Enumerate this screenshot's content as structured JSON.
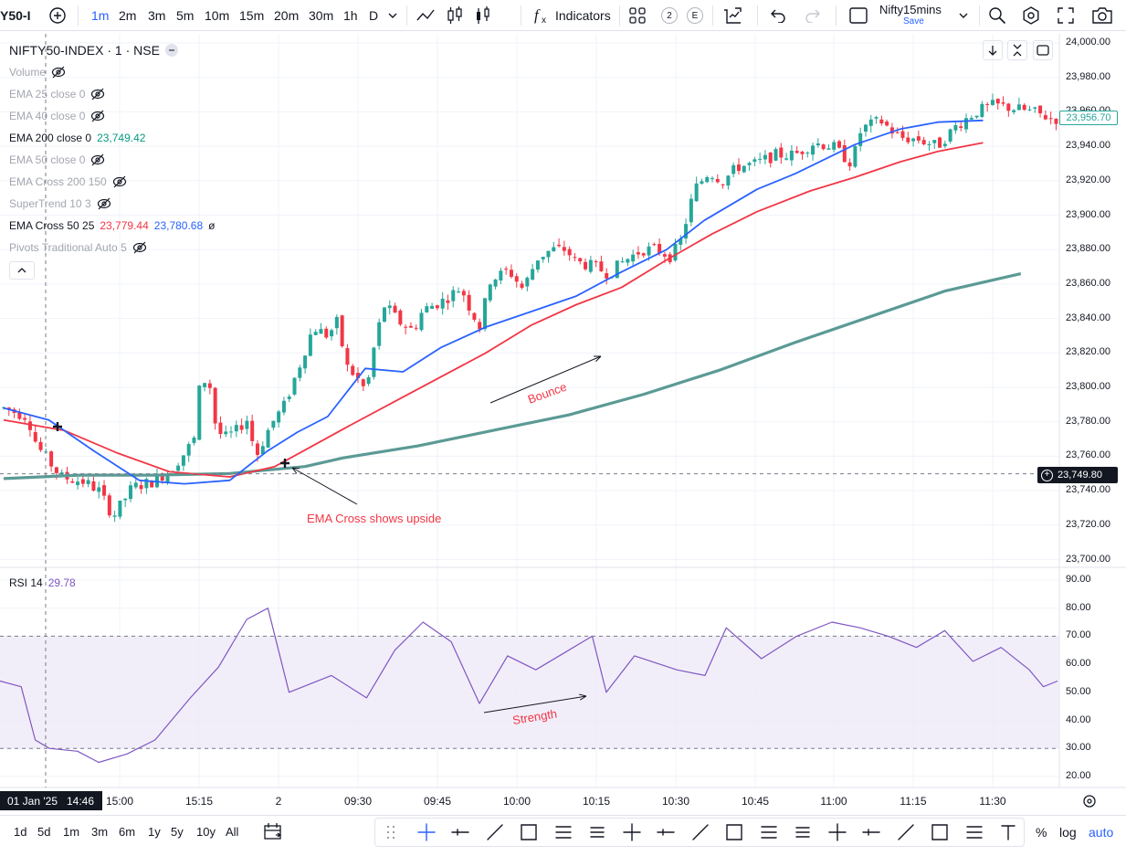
{
  "toolbar": {
    "symbol_short": "Y50-I",
    "add_symbol_icon": "plus-circle-icon",
    "intervals": [
      "1m",
      "2m",
      "3m",
      "5m",
      "10m",
      "15m",
      "20m",
      "30m",
      "1h",
      "D"
    ],
    "active_interval": "1m",
    "indicators_label": "Indicators",
    "layout_count_1": "2",
    "layout_count_2": "E",
    "layout_name": "Nifty15mins",
    "save_label": "Save"
  },
  "legend": {
    "title": "NIFTY50-INDEX · 1 · NSE",
    "indicators": [
      {
        "label": "Volume",
        "hidden": true
      },
      {
        "label": "EMA 25 close 0",
        "hidden": true
      },
      {
        "label": "EMA 40 close 0",
        "hidden": true
      },
      {
        "label": "EMA 200 close 0",
        "value": "23,749.42",
        "hidden": false
      },
      {
        "label": "EMA 50 close 0",
        "hidden": true
      },
      {
        "label": "EMA Cross 200 150",
        "hidden": true
      },
      {
        "label": "SuperTrend 10 3",
        "hidden": true
      },
      {
        "label": "EMA Cross 50 25",
        "value1": "23,779.44",
        "value2": "23,780.68",
        "suffix": "ø",
        "hidden": false
      },
      {
        "label": "Pivots Traditional Auto 5",
        "hidden": true
      }
    ],
    "rsi_label": "RSI 14",
    "rsi_value": "29.78"
  },
  "price_axis": {
    "ticks": [
      "24,000.00",
      "23,980.00",
      "23,960.00",
      "23,940.00",
      "23,920.00",
      "23,900.00",
      "23,880.00",
      "23,860.00",
      "23,840.00",
      "23,820.00",
      "23,800.00",
      "23,780.00",
      "23,760.00",
      "23,740.00",
      "23,720.00",
      "23,700.00"
    ],
    "last_price": "23,956.70",
    "crosshair_price": "23,749.80"
  },
  "rsi_axis": {
    "ticks": [
      "90.00",
      "80.00",
      "70.00",
      "60.00",
      "50.00",
      "40.00",
      "30.00",
      "20.00"
    ]
  },
  "time_axis": {
    "ticks": [
      "15:00",
      "15:15",
      "2",
      "09:30",
      "09:45",
      "10:00",
      "10:15",
      "10:30",
      "10:45",
      "11:00",
      "11:15",
      "11:30"
    ],
    "crosshair_label": "01 Jan '25   14:46"
  },
  "annotations": {
    "ema_cross": "EMA Cross shows upside",
    "bounce": "Bounce",
    "strength": "Strength"
  },
  "bottom_bar": {
    "ranges": [
      "1d",
      "5d",
      "1m",
      "3m",
      "6m",
      "1y",
      "5y",
      "10y",
      "All"
    ],
    "percent_label": "%",
    "log_label": "log",
    "auto_label": "auto"
  },
  "colors": {
    "up": "#26a69a",
    "down": "#f23645",
    "ema_blue": "#2962ff",
    "ema_red": "#f23645",
    "ema200": "#5b9a95",
    "rsi": "#7e57c2",
    "rsi_band": "#ede7f6"
  },
  "chart_data": [
    {
      "type": "candlestick",
      "title": "NIFTY50-INDEX · 1 · NSE",
      "ylim": [
        23695,
        24005
      ],
      "series": [
        {
          "name": "EMA 200 close 0",
          "points": [
            [
              0,
              23747
            ],
            [
              10,
              23749
            ],
            [
              20,
              23749
            ],
            [
              30,
              23750
            ],
            [
              40,
              23754
            ],
            [
              45,
              23759
            ],
            [
              55,
              23766
            ],
            [
              65,
              23775
            ],
            [
              75,
              23784
            ],
            [
              85,
              23796
            ],
            [
              95,
              23810
            ],
            [
              105,
              23826
            ],
            [
              115,
              23841
            ],
            [
              125,
              23856
            ],
            [
              135,
              23866
            ]
          ]
        },
        {
          "name": "EMA Cross 50 25 (slow)",
          "points": [
            [
              0,
              23781
            ],
            [
              8,
              23775
            ],
            [
              15,
              23762
            ],
            [
              22,
              23751
            ],
            [
              30,
              23748
            ],
            [
              36,
              23754
            ],
            [
              41,
              23766
            ],
            [
              46,
              23778
            ],
            [
              52,
              23792
            ],
            [
              58,
              23806
            ],
            [
              64,
              23820
            ],
            [
              70,
              23836
            ],
            [
              76,
              23848
            ],
            [
              82,
              23858
            ],
            [
              88,
              23874
            ],
            [
              94,
              23889
            ],
            [
              100,
              23902
            ],
            [
              107,
              23914
            ],
            [
              113,
              23922
            ],
            [
              119,
              23931
            ],
            [
              124,
              23937
            ],
            [
              130,
              23942
            ]
          ]
        },
        {
          "name": "EMA Cross 50 25 (fast)",
          "points": [
            [
              0,
              23788
            ],
            [
              6,
              23781
            ],
            [
              12,
              23763
            ],
            [
              18,
              23746
            ],
            [
              24,
              23744
            ],
            [
              30,
              23746
            ],
            [
              35,
              23763
            ],
            [
              39,
              23774
            ],
            [
              43,
              23783
            ],
            [
              48,
              23811
            ],
            [
              53,
              23809
            ],
            [
              58,
              23823
            ],
            [
              64,
              23835
            ],
            [
              70,
              23844
            ],
            [
              76,
              23853
            ],
            [
              82,
              23867
            ],
            [
              88,
              23880
            ],
            [
              93,
              23897
            ],
            [
              100,
              23915
            ],
            [
              105,
              23924
            ],
            [
              113,
              23941
            ],
            [
              119,
              23950
            ],
            [
              124,
              23954
            ],
            [
              130,
              23955
            ]
          ]
        },
        {
          "name": "RSI 14",
          "points": [
            [
              0,
              54
            ],
            [
              3,
              52
            ],
            [
              5,
              33
            ],
            [
              7,
              30
            ],
            [
              11,
              29
            ],
            [
              14,
              25
            ],
            [
              18,
              28
            ],
            [
              22,
              33
            ],
            [
              27,
              48
            ],
            [
              31,
              59
            ],
            [
              35,
              76
            ],
            [
              38,
              80
            ],
            [
              41,
              50
            ],
            [
              47,
              56
            ],
            [
              52,
              48
            ],
            [
              56,
              65
            ],
            [
              60,
              75
            ],
            [
              64,
              68
            ],
            [
              68,
              46
            ],
            [
              72,
              63
            ],
            [
              76,
              58
            ],
            [
              80,
              64
            ],
            [
              84,
              70
            ],
            [
              86,
              50
            ],
            [
              90,
              63
            ],
            [
              96,
              58
            ],
            [
              100,
              56
            ],
            [
              103,
              73
            ],
            [
              108,
              62
            ],
            [
              113,
              70
            ],
            [
              118,
              75
            ],
            [
              122,
              73
            ],
            [
              126,
              70
            ],
            [
              130,
              66
            ],
            [
              134,
              72
            ],
            [
              138,
              61
            ],
            [
              142,
              66
            ],
            [
              146,
              58
            ],
            [
              148,
              52
            ],
            [
              150,
              54
            ]
          ]
        }
      ]
    }
  ]
}
